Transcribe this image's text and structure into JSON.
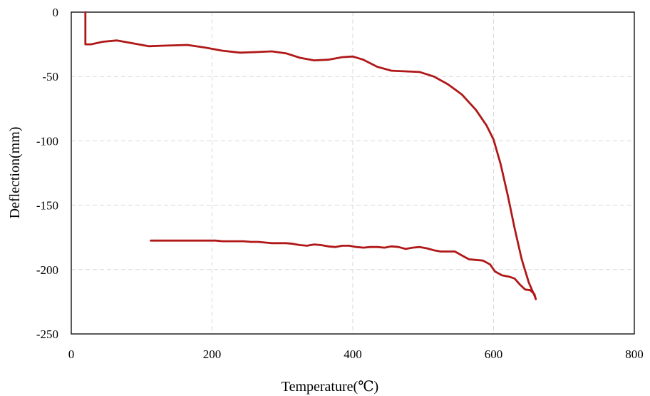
{
  "chart_data": {
    "type": "line",
    "title": "",
    "xlabel": "Temperature(℃)",
    "ylabel": "Deflection(mm)",
    "xlim": [
      0,
      800
    ],
    "ylim": [
      -250,
      0
    ],
    "x_ticks": [
      "0",
      "200",
      "400",
      "600",
      "800"
    ],
    "y_ticks": [
      "0",
      "-50",
      "-100",
      "-150",
      "-200",
      "-250"
    ],
    "grid": true,
    "legend": "none",
    "colors": {
      "series": "#b01818",
      "grid": "#d9d9d9",
      "frame": "#000000"
    },
    "series": [
      {
        "x": [
          20,
          20,
          28,
          45,
          65,
          85,
          110,
          135,
          165,
          190,
          215,
          240,
          265,
          285,
          305,
          325,
          345,
          365,
          385,
          400,
          415,
          435,
          455,
          475,
          495,
          515,
          535,
          555,
          575,
          590,
          600,
          610,
          620,
          630,
          640,
          650,
          658,
          660,
          658,
          652,
          645,
          638,
          630,
          622,
          612,
          602,
          595,
          585,
          575,
          565,
          555,
          545,
          535,
          525,
          515,
          505,
          495,
          485,
          475,
          465,
          455,
          445,
          435,
          425,
          415,
          405,
          395,
          385,
          375,
          365,
          355,
          345,
          335,
          325,
          315,
          305,
          295,
          285,
          275,
          265,
          255,
          245,
          235,
          225,
          215,
          205,
          195,
          180,
          160,
          140,
          113
        ],
        "y": [
          0,
          -25,
          -25,
          -23,
          -22,
          -24,
          -26.5,
          -26,
          -25.5,
          -27.5,
          -30,
          -31.5,
          -31,
          -30.5,
          -32,
          -35.5,
          -37.5,
          -37,
          -35,
          -34.5,
          -37,
          -42.5,
          -45.5,
          -46,
          -46.5,
          -50,
          -56,
          -64,
          -76,
          -88,
          -99,
          -118,
          -142,
          -168,
          -192,
          -210,
          -220,
          -223,
          -219,
          -216,
          -215.5,
          -212,
          -207,
          -205.5,
          -204.5,
          -201.5,
          -196,
          -193,
          -192.5,
          -192,
          -189,
          -186,
          -186,
          -186,
          -185,
          -183.5,
          -182.5,
          -183,
          -184,
          -182.5,
          -182,
          -183,
          -182.5,
          -182.5,
          -183,
          -182.5,
          -181.5,
          -181.5,
          -182.5,
          -182,
          -181,
          -180.5,
          -181.5,
          -181,
          -180,
          -179.5,
          -179.5,
          -179.5,
          -179,
          -178.5,
          -178.5,
          -178,
          -178,
          -178,
          -178,
          -177.5,
          -177.5,
          -177.5,
          -177.5,
          -177.5,
          -177.5
        ]
      }
    ]
  }
}
